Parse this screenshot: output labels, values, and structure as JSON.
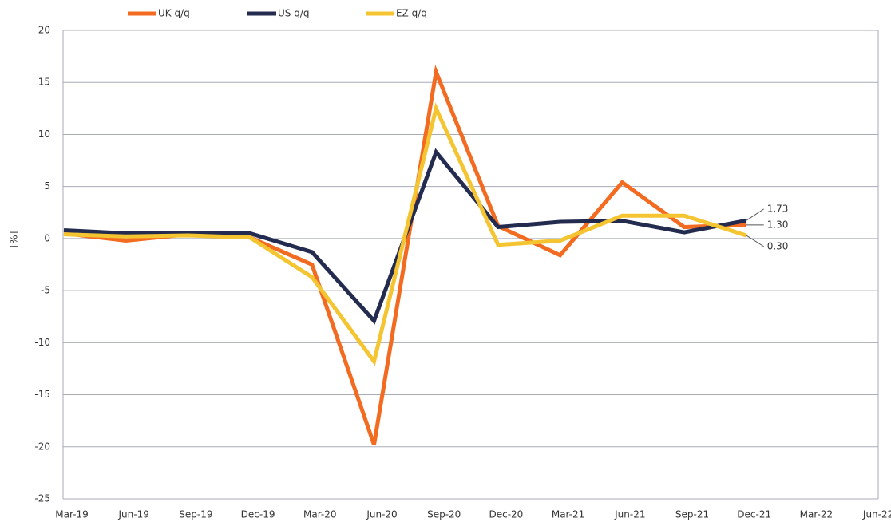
{
  "chart_data": {
    "type": "line",
    "y_label": "[%]",
    "categories": [
      "Mar-19",
      "Jun-19",
      "Sep-19",
      "Dec-19",
      "Mar-20",
      "Jun-20",
      "Sep-20",
      "Dec-20",
      "Mar-21",
      "Jun-21",
      "Sep-21",
      "Dec-21",
      "Mar-22",
      "Jun-22"
    ],
    "series": [
      {
        "name": "UK q/q",
        "color": "#f26b21",
        "values": [
          0.5,
          -0.2,
          0.4,
          0.1,
          -2.5,
          -19.8,
          16.0,
          1.2,
          -1.6,
          5.4,
          1.1,
          1.3,
          null,
          null
        ],
        "value_labels": [
          null,
          null,
          null,
          null,
          null,
          null,
          null,
          null,
          null,
          null,
          null,
          "1.30",
          null,
          null
        ]
      },
      {
        "name": "US q/q",
        "color": "#232b4f",
        "values": [
          0.8,
          0.5,
          0.5,
          0.5,
          -1.3,
          -7.9,
          8.3,
          1.1,
          1.6,
          1.7,
          0.6,
          1.73,
          null,
          null
        ],
        "value_labels": [
          null,
          null,
          null,
          null,
          null,
          null,
          null,
          null,
          null,
          null,
          null,
          "1.73",
          null,
          null
        ]
      },
      {
        "name": "EZ q/q",
        "color": "#f5c431",
        "values": [
          0.4,
          0.2,
          0.3,
          0.1,
          -3.7,
          -11.8,
          12.5,
          -0.6,
          -0.2,
          2.2,
          2.2,
          0.3,
          null,
          null
        ],
        "value_labels": [
          null,
          null,
          null,
          null,
          null,
          null,
          null,
          null,
          null,
          null,
          null,
          "0.30",
          null,
          null
        ]
      }
    ],
    "ylim": [
      -25,
      20
    ],
    "yticks": [
      -25,
      -20,
      -15,
      -10,
      -5,
      0,
      5,
      10,
      15,
      20
    ],
    "grid": true
  }
}
